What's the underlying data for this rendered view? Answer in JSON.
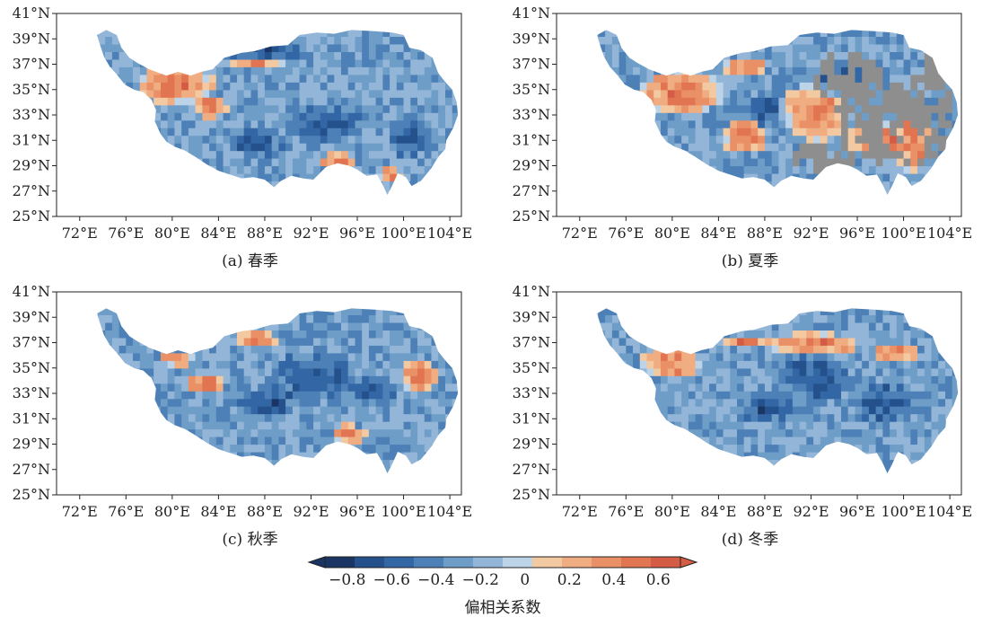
{
  "lat_labels": [
    "41°N",
    "39°N",
    "37°N",
    "35°N",
    "33°N",
    "31°N",
    "29°N",
    "27°N",
    "25°N"
  ],
  "lon_labels": [
    "72°E",
    "76°E",
    "80°E",
    "84°E",
    "88°E",
    "92°E",
    "96°E",
    "100°E",
    "104°E"
  ],
  "panels": [
    {
      "id": "a",
      "caption": "(a) 春季",
      "warm_regions": [
        [
          80,
          35.2,
          3.4,
          1.6
        ],
        [
          83,
          33.4,
          1.5,
          0.9
        ],
        [
          87,
          36.8,
          2.2,
          0.6
        ],
        [
          94,
          29.2,
          1.6,
          0.6
        ],
        [
          98.5,
          28,
          1.0,
          0.8
        ]
      ],
      "strong_blue": [
        [
          88,
          37.8,
          4,
          1.3
        ],
        [
          93,
          32.2,
          4,
          1.6
        ],
        [
          87,
          30.5,
          3,
          1.2
        ],
        [
          100,
          31,
          2,
          2
        ]
      ],
      "missing": []
    },
    {
      "id": "b",
      "caption": "(b) 夏季",
      "warm_regions": [
        [
          80.5,
          34.5,
          3.6,
          1.8
        ],
        [
          86,
          31,
          2,
          1.4
        ],
        [
          92,
          33,
          3,
          2.3
        ],
        [
          97,
          31,
          2.2,
          1.5
        ],
        [
          100.5,
          31,
          1.8,
          2.8
        ],
        [
          86,
          36.5,
          2.2,
          0.6
        ]
      ],
      "strong_blue": [
        [
          88,
          33,
          2.5,
          1.6
        ],
        [
          94,
          35.5,
          2.5,
          1.8
        ]
      ],
      "missing": [
        [
          95,
          35.5,
          3,
          2.5
        ],
        [
          99,
          32,
          5,
          3.5
        ],
        [
          102,
          34,
          2,
          4
        ],
        [
          93,
          29.5,
          3,
          1.2
        ]
      ]
    },
    {
      "id": "c",
      "caption": "(c) 秋季",
      "warm_regions": [
        [
          82.5,
          33.5,
          1.8,
          0.9
        ],
        [
          80,
          35.5,
          1.6,
          0.6
        ],
        [
          87,
          37,
          2,
          0.6
        ],
        [
          95,
          29.5,
          1.5,
          0.8
        ],
        [
          101,
          34,
          1.5,
          1.4
        ]
      ],
      "strong_blue": [
        [
          92,
          34,
          4,
          2.3
        ],
        [
          88,
          32,
          3,
          1.5
        ],
        [
          97,
          33,
          2.5,
          1.5
        ]
      ],
      "missing": []
    },
    {
      "id": "d",
      "caption": "(d) 冬季",
      "warm_regions": [
        [
          79.5,
          35.2,
          2.6,
          1.4
        ],
        [
          92,
          36.6,
          4,
          0.9
        ],
        [
          99,
          36,
          2,
          0.7
        ],
        [
          86,
          36.8,
          2,
          0.5
        ]
      ],
      "strong_blue": [
        [
          92,
          34,
          3.5,
          2.3
        ],
        [
          88,
          31.5,
          3,
          1.4
        ],
        [
          98,
          32,
          3,
          2
        ]
      ],
      "missing": []
    }
  ],
  "colorbar": {
    "title": "偏相关系数",
    "tick_labels": [
      "−0.8",
      "−0.6",
      "−0.4",
      "−0.2",
      "0",
      "0.2",
      "0.4",
      "0.6"
    ],
    "ticks": [
      -0.8,
      -0.6,
      -0.4,
      -0.2,
      0,
      0.2,
      0.4,
      0.6
    ],
    "min": -0.9,
    "max": 0.7,
    "colors": [
      "#1a3563",
      "#24518c",
      "#3266a4",
      "#4d80b6",
      "#6e9dc8",
      "#93b6d8",
      "#bcd3e8",
      "#f3c9a1",
      "#f1ad82",
      "#ea9067",
      "#e17552",
      "#d45c44"
    ],
    "missing_color": "#8e8e8e"
  }
}
